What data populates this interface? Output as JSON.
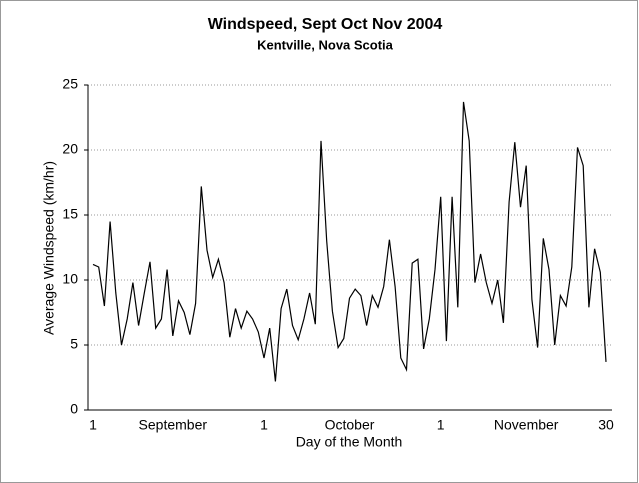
{
  "chart_data": {
    "type": "line",
    "title": "Windspeed, Sept Oct Nov 2004",
    "subtitle": "Kentville, Nova Scotia",
    "x_label": "Day of the Month",
    "y_label": "Average Windspeed (km/hr)",
    "x": [
      1,
      2,
      3,
      4,
      5,
      6,
      7,
      8,
      9,
      10,
      11,
      12,
      13,
      14,
      15,
      16,
      17,
      18,
      19,
      20,
      21,
      22,
      23,
      24,
      25,
      26,
      27,
      28,
      29,
      30,
      31,
      32,
      33,
      34,
      35,
      36,
      37,
      38,
      39,
      40,
      41,
      42,
      43,
      44,
      45,
      46,
      47,
      48,
      49,
      50,
      51,
      52,
      53,
      54,
      55,
      56,
      57,
      58,
      59,
      60,
      61,
      62,
      63,
      64,
      65,
      66,
      67,
      68,
      69,
      70,
      71,
      72,
      73,
      74,
      75,
      76,
      77,
      78,
      79,
      80,
      81,
      82,
      83,
      84,
      85,
      86,
      87,
      88,
      89,
      90,
      91
    ],
    "series": [
      {
        "name": "Windspeed",
        "color": "#000000",
        "values": [
          11.2,
          11,
          8,
          14.5,
          9,
          5,
          7,
          9.8,
          6.5,
          9,
          11.4,
          6.3,
          7,
          10.8,
          5.7,
          8.4,
          7.5,
          5.8,
          8.2,
          17.2,
          12.3,
          10.2,
          11.6,
          9.8,
          5.6,
          7.8,
          6.3,
          7.6,
          7,
          6,
          4,
          6.3,
          2.2,
          7.8,
          9.3,
          6.5,
          5.4,
          7,
          9,
          6.6,
          20.7,
          13,
          7.6,
          4.8,
          5.5,
          8.6,
          9.3,
          8.8,
          6.5,
          8.8,
          7.9,
          9.5,
          13.1,
          9.5,
          4,
          3.1,
          11.3,
          11.6,
          4.7,
          7,
          10.8,
          16.4,
          5.3,
          16.4,
          7.9,
          23.7,
          20.7,
          9.8,
          12,
          9.8,
          8.2,
          10,
          6.7,
          16,
          20.6,
          15.6,
          18.8,
          8.5,
          4.8,
          13.2,
          10.8,
          5,
          8.8,
          8,
          11,
          20.2,
          18.8,
          7.9,
          12.4,
          10.6,
          3.7
        ]
      }
    ],
    "xlim": [
      1,
      91
    ],
    "xticks": [
      1,
      {
        "value": 15,
        "label": "September"
      },
      {
        "value": 31,
        "label": "1"
      },
      {
        "value": 46,
        "label": "October"
      },
      {
        "value": 62,
        "label": "1"
      },
      {
        "value": 77,
        "label": "November"
      },
      {
        "value": 91,
        "label": "30"
      }
    ],
    "ylim": [
      0,
      25
    ],
    "yticks": [
      0,
      5,
      10,
      15,
      20,
      25
    ],
    "grid": true
  }
}
